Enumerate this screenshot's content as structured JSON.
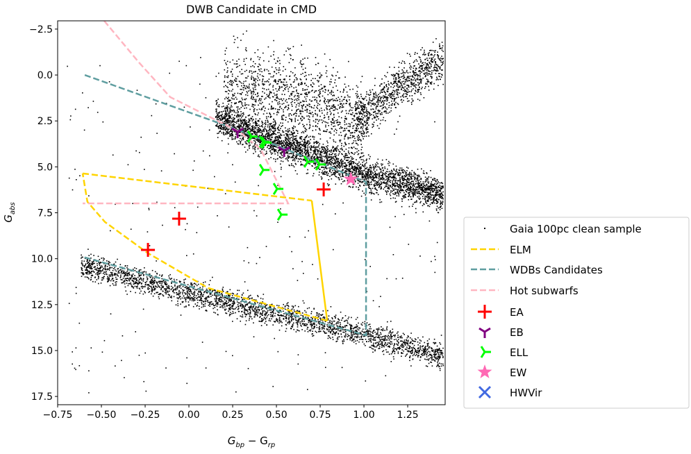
{
  "chart_data": {
    "type": "scatter",
    "title": "DWB Candidate in CMD",
    "xlabel": {
      "main": "G",
      "sub1": "bp",
      "mid": " − G",
      "sub2": "rp"
    },
    "ylabel": {
      "main": "G",
      "sub": "abs"
    },
    "xlim": [
      -0.75,
      1.464
    ],
    "ylim": [
      17.95,
      -2.95
    ],
    "y_inverted": true,
    "grid": false,
    "xticks": [
      -0.75,
      -0.5,
      -0.25,
      0.0,
      0.25,
      0.5,
      0.75,
      1.0,
      1.25
    ],
    "xtick_labels": [
      "−0.75",
      "−0.50",
      "−0.25",
      "0.00",
      "0.25",
      "0.50",
      "0.75",
      "1.00",
      "1.25"
    ],
    "yticks": [
      -2.5,
      0.0,
      2.5,
      5.0,
      7.5,
      10.0,
      12.5,
      15.0,
      17.5
    ],
    "ytick_labels": [
      "−2.5",
      "0.0",
      "2.5",
      "5.0",
      "7.5",
      "10.0",
      "12.5",
      "15.0",
      "17.5"
    ],
    "legend_placement": "outside-right-bottom",
    "background_sample": {
      "name": "Gaia 100pc clean sample",
      "color": "#000000",
      "bands": [
        {
          "label": "main sequence",
          "x": [
            0.15,
            1.45
          ],
          "y_at_x": [
            [
              0.15,
              2.3
            ],
            [
              0.5,
              3.6
            ],
            [
              0.75,
              4.5
            ],
            [
              1.0,
              5.4
            ],
            [
              1.45,
              6.5
            ]
          ],
          "spread": 0.45,
          "n": 3200
        },
        {
          "label": "upper scatter",
          "x": [
            0.2,
            1.0
          ],
          "y_at_x": [
            [
              0.2,
              1.0
            ],
            [
              0.6,
              1.5
            ],
            [
              1.0,
              2.6
            ]
          ],
          "spread": 1.3,
          "n": 1400
        },
        {
          "label": "giants",
          "x": [
            0.95,
            1.45
          ],
          "y_at_x": [
            [
              0.95,
              2.5
            ],
            [
              1.2,
              0.6
            ],
            [
              1.45,
              -0.8
            ]
          ],
          "spread": 0.6,
          "n": 900
        },
        {
          "label": "white dwarfs",
          "x": [
            -0.62,
            1.45
          ],
          "y_at_x": [
            [
              -0.62,
              10.3
            ],
            [
              0.0,
              11.9
            ],
            [
              0.5,
              13.0
            ],
            [
              1.0,
              14.1
            ],
            [
              1.45,
              15.3
            ]
          ],
          "spread": 0.35,
          "n": 2600
        },
        {
          "label": "sparse",
          "x": [
            -0.7,
            1.45
          ],
          "y": [
            -1.0,
            17.5
          ],
          "n": 260
        }
      ]
    },
    "regions": [
      {
        "name": "ELM",
        "color": "#FFD400",
        "segments": [
          {
            "style": "dashed",
            "points": [
              [
                -0.607,
                5.36
              ],
              [
                0.702,
                6.84
              ]
            ]
          },
          {
            "style": "solid",
            "points": [
              [
                0.702,
                6.84
              ],
              [
                0.79,
                13.38
              ]
            ]
          },
          {
            "style": "dashed",
            "points": [
              [
                0.79,
                13.38
              ],
              [
                0.11,
                11.6
              ],
              [
                -0.234,
                9.7
              ],
              [
                -0.48,
                8.0
              ],
              [
                -0.58,
                6.9
              ],
              [
                -0.607,
                5.36
              ]
            ]
          }
        ]
      },
      {
        "name": "WDBs Candidates",
        "color": "#5F9EA0",
        "segments": [
          {
            "style": "dashed",
            "points": [
              [
                -0.595,
                0.0
              ],
              [
                0.29,
                3.02
              ],
              [
                1.012,
                5.82
              ],
              [
                1.012,
                14.17
              ],
              [
                -0.607,
                9.9
              ]
            ]
          }
        ]
      },
      {
        "name": "Hot subwarfs",
        "color": "#FFB6C1",
        "segments": [
          {
            "style": "dashed",
            "points": [
              [
                -0.484,
                -2.95
              ],
              [
                -0.286,
                -0.69
              ],
              [
                -0.107,
                1.2
              ],
              [
                0.29,
                3.1
              ],
              [
                0.41,
                4.04
              ],
              [
                0.567,
                6.99
              ],
              [
                -0.607,
                6.99
              ]
            ]
          }
        ]
      }
    ],
    "series": [
      {
        "name": "EA",
        "marker": "plus",
        "color": "#FF0000",
        "points": [
          [
            -0.234,
            9.52
          ],
          [
            -0.056,
            7.82
          ],
          [
            0.77,
            6.23
          ]
        ]
      },
      {
        "name": "EB",
        "marker": "tri_down",
        "color": "#800080",
        "points": [
          [
            0.278,
            3.1
          ],
          [
            0.544,
            4.12
          ]
        ]
      },
      {
        "name": "ELL",
        "marker": "tri_right",
        "color": "#00FF00",
        "points": [
          [
            0.357,
            3.35
          ],
          [
            0.425,
            3.64
          ],
          [
            0.437,
            3.68
          ],
          [
            0.425,
            5.17
          ],
          [
            0.504,
            6.2
          ],
          [
            0.528,
            7.6
          ],
          [
            0.679,
            4.72
          ],
          [
            0.746,
            4.87
          ]
        ]
      },
      {
        "name": "EW",
        "marker": "star",
        "color": "#FF69B4",
        "points": [
          [
            0.925,
            5.67
          ]
        ]
      },
      {
        "name": "HWVir",
        "marker": "x",
        "color": "#4169E1",
        "points": []
      }
    ],
    "legend": [
      "Gaia 100pc clean sample",
      "ELM",
      "WDBs Candidates",
      "Hot subwarfs",
      "EA",
      "EB",
      "ELL",
      "EW",
      "HWVir"
    ]
  }
}
